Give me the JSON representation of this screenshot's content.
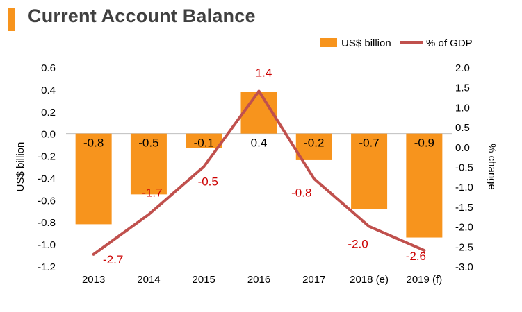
{
  "title": "Current Account Balance",
  "colors": {
    "accent": "#f7941d",
    "bar": "#f7941d",
    "line": "#c0504d",
    "label_red": "#cc0000",
    "text": "#000000"
  },
  "chart_data": {
    "type": "bar+line",
    "categories": [
      "2013",
      "2014",
      "2015",
      "2016",
      "2017",
      "2018 (e)",
      "2019 (f)"
    ],
    "series": [
      {
        "name": "US$ billion",
        "type": "bar",
        "axis": "left",
        "values": [
          -0.8,
          -0.5,
          -0.1,
          0.4,
          -0.2,
          -0.7,
          -0.9
        ],
        "labels": [
          "-0.8",
          "-0.5",
          "-0.1",
          "0.4",
          "-0.2",
          "-0.7",
          "-0.9"
        ],
        "bar_tops": [
          -0.82,
          -0.55,
          -0.13,
          0.38,
          -0.24,
          -0.68,
          -0.94
        ]
      },
      {
        "name": "% of GDP",
        "type": "line",
        "axis": "right",
        "values": [
          -2.7,
          -1.7,
          -0.5,
          1.4,
          -0.8,
          -2.0,
          -2.6
        ],
        "labels": [
          "-2.7",
          "-1.7",
          "-0.5",
          "1.4",
          "-0.8",
          "-2.0",
          "-2.6"
        ]
      }
    ],
    "ylabel": "US$ billion",
    "y2label": "% change",
    "ylim": [
      -1.2,
      0.6
    ],
    "y2lim": [
      -3.0,
      2.0
    ],
    "yticks": [
      "0.6",
      "0.4",
      "0.2",
      "0.0",
      "-0.2",
      "-0.4",
      "-0.6",
      "-0.8",
      "-1.0",
      "-1.2"
    ],
    "y2ticks": [
      "2.0",
      "1.5",
      "1.0",
      "0.5",
      "0.0",
      "-0.5",
      "-1.0",
      "-1.5",
      "-2.0",
      "-2.5",
      "-3.0"
    ],
    "legend": {
      "position": "top-right",
      "items": [
        "US$ billion",
        "% of GDP"
      ]
    },
    "grid": false
  }
}
